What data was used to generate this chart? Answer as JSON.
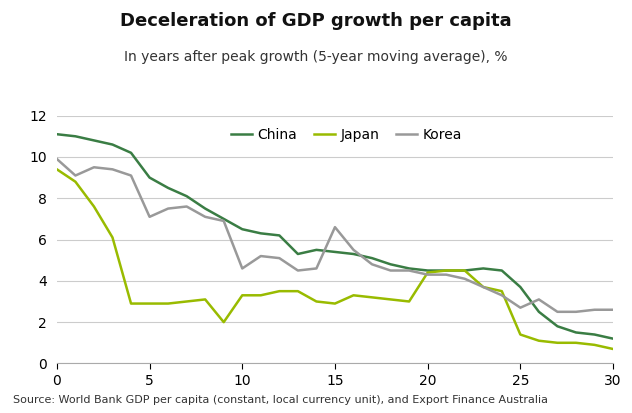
{
  "title": "Deceleration of GDP growth per capita",
  "subtitle": "In years after peak growth (5-year moving average), %",
  "source": "Source: World Bank GDP per capita (constant, local currency unit), and Export Finance Australia",
  "xlim": [
    0,
    30
  ],
  "ylim": [
    0,
    12
  ],
  "yticks": [
    0,
    2,
    4,
    6,
    8,
    10,
    12
  ],
  "xticks": [
    0,
    5,
    10,
    15,
    20,
    25,
    30
  ],
  "china_color": "#3a7d44",
  "japan_color": "#99bb00",
  "korea_color": "#999999",
  "china_x": [
    0,
    1,
    2,
    3,
    4,
    5,
    6,
    7,
    8,
    9,
    10,
    11,
    12,
    13,
    14,
    15,
    16,
    17,
    18,
    19,
    20,
    21,
    22,
    23,
    24,
    25,
    26,
    27,
    28,
    29,
    30
  ],
  "china_y": [
    11.1,
    11.0,
    10.8,
    10.6,
    10.2,
    9.0,
    8.5,
    8.1,
    7.5,
    7.0,
    6.5,
    6.3,
    6.2,
    5.3,
    5.5,
    5.4,
    5.3,
    5.1,
    4.8,
    4.6,
    4.5,
    4.5,
    4.5,
    4.6,
    4.5,
    3.7,
    2.5,
    1.8,
    1.5,
    1.4,
    1.2
  ],
  "japan_x": [
    0,
    1,
    2,
    3,
    4,
    5,
    6,
    7,
    8,
    9,
    10,
    11,
    12,
    13,
    14,
    15,
    16,
    17,
    18,
    19,
    20,
    21,
    22,
    23,
    24,
    25,
    26,
    27,
    28,
    29,
    30
  ],
  "japan_y": [
    9.4,
    8.8,
    7.6,
    6.1,
    2.9,
    2.9,
    2.9,
    3.0,
    3.1,
    2.0,
    3.3,
    3.3,
    3.5,
    3.5,
    3.0,
    2.9,
    3.3,
    3.2,
    3.1,
    3.0,
    4.4,
    4.5,
    4.5,
    3.7,
    3.5,
    1.4,
    1.1,
    1.0,
    1.0,
    0.9,
    0.7
  ],
  "korea_x": [
    0,
    1,
    2,
    3,
    4,
    5,
    6,
    7,
    8,
    9,
    10,
    11,
    12,
    13,
    14,
    15,
    16,
    17,
    18,
    19,
    20,
    21,
    22,
    23,
    24,
    25,
    26,
    27,
    28,
    29,
    30
  ],
  "korea_y": [
    9.9,
    9.1,
    9.5,
    9.4,
    9.1,
    7.1,
    7.5,
    7.6,
    7.1,
    6.9,
    4.6,
    5.2,
    5.1,
    4.5,
    4.6,
    6.6,
    5.5,
    4.8,
    4.5,
    4.5,
    4.3,
    4.3,
    4.1,
    3.7,
    3.3,
    2.7,
    3.1,
    2.5,
    2.5,
    2.6,
    2.6
  ],
  "title_fontsize": 13,
  "subtitle_fontsize": 10,
  "tick_fontsize": 10,
  "legend_fontsize": 10,
  "source_fontsize": 8
}
